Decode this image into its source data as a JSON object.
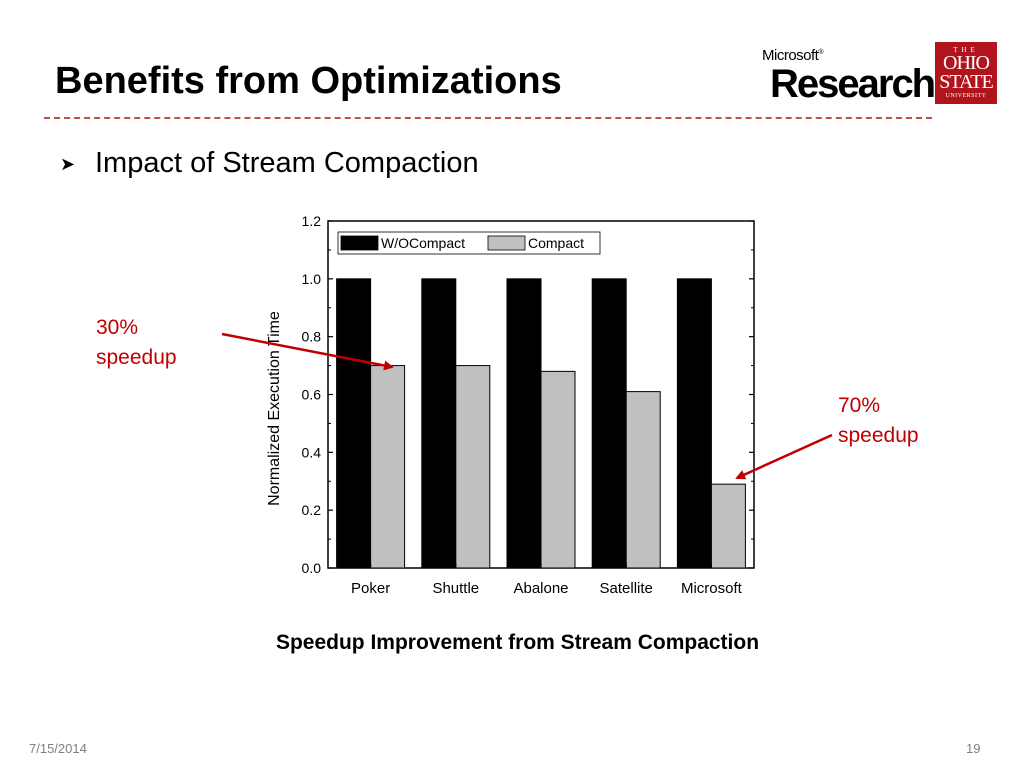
{
  "slide": {
    "title": "Benefits from Optimizations",
    "bullet": "Impact of Stream Compaction",
    "caption": "Speedup Improvement from Stream Compaction",
    "annotation_left": [
      "30%",
      "speedup"
    ],
    "annotation_right": [
      "70%",
      "speedup"
    ],
    "date": "7/15/2014",
    "page_number": "19"
  },
  "logos": {
    "microsoft_small": "Microsoft",
    "microsoft_big": "Research",
    "osu_the": "THE",
    "osu_ohio": "OHIO",
    "osu_state": "STATE",
    "osu_university": "UNIVERSITY"
  },
  "colors": {
    "divider": "#c0504d",
    "annotation": "#c00000",
    "osu_red": "#b0151d",
    "series_wo": "#000000",
    "series_compact": "#c0c0c0"
  },
  "chart_data": {
    "type": "bar",
    "categories": [
      "Poker",
      "Shuttle",
      "Abalone",
      "Satellite",
      "Microsoft"
    ],
    "series": [
      {
        "name": "W/OCompact",
        "values": [
          1.0,
          1.0,
          1.0,
          1.0,
          1.0
        ],
        "color": "#000000"
      },
      {
        "name": "Compact",
        "values": [
          0.7,
          0.7,
          0.68,
          0.61,
          0.29
        ],
        "color": "#c0c0c0"
      }
    ],
    "ylabel": "Normalized Execution Time",
    "xlabel": "",
    "ylim": [
      0,
      1.2
    ],
    "yticks": [
      "0.0",
      "0.2",
      "0.4",
      "0.6",
      "0.8",
      "1.0",
      "1.2"
    ],
    "legend_position": "top",
    "grid": false
  }
}
